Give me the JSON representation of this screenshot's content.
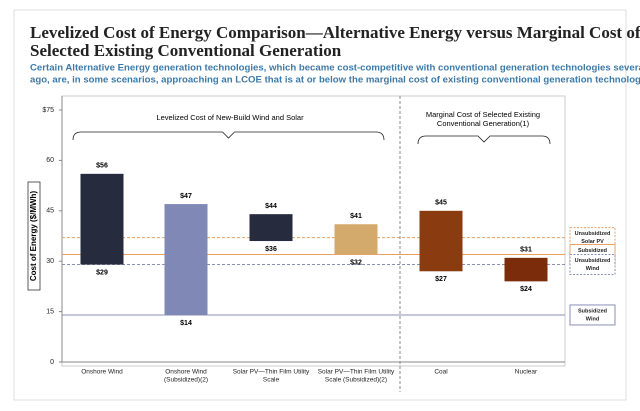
{
  "chart_data": {
    "type": "floating-bar",
    "title_lines": [
      "Levelized Cost of Energy Comparison—Alternative Energy versus Marginal Cost of",
      "Selected Existing Conventional Generation"
    ],
    "subtitle_lines": [
      "Certain Alternative Energy generation technologies, which became cost-competitive with conventional generation technologies several years",
      "ago, are, in some scenarios, approaching an LCOE that is at or below the marginal cost of existing conventional generation technologies"
    ],
    "y_label": "Cost of Energy ($/MWh)",
    "categories": [
      [
        "Onshore Wind"
      ],
      [
        "Onshore Wind",
        "(Subsidized)(2)"
      ],
      [
        "Solar PV—Thin Film Utility",
        "Scale"
      ],
      [
        "Solar PV—Thin Film Utility",
        "Scale (Subsidized)(2)"
      ],
      [
        "Coal"
      ],
      [
        "Nuclear"
      ]
    ],
    "colors": [
      "#262b3e",
      "#8088b6",
      "#262b3e",
      "#d3aa6c",
      "#8a3b10",
      "#7b2c0b"
    ],
    "high": {
      "values": [
        56,
        47,
        44,
        41,
        45,
        31
      ],
      "value_labels": [
        "$56",
        "$47",
        "$44",
        "$41",
        "$45",
        "$31"
      ]
    },
    "low": {
      "values": [
        29,
        14,
        36,
        32,
        27,
        24
      ],
      "value_labels": [
        "$29",
        "$14",
        "$36",
        "$32",
        "$27",
        "$24"
      ]
    },
    "groups": [
      "Levelized Cost of New-Build Wind and Solar",
      [
        "Marginal Cost of Selected Existing",
        "Conventional Generation(1)"
      ]
    ],
    "reference_lines": [
      {
        "label": [
          "Unsubsidized",
          "Solar PV"
        ],
        "value": 37,
        "color": "#e8a060",
        "dashed": true
      },
      {
        "label": [
          "Subsidized",
          "Solar PV"
        ],
        "value": 32,
        "color": "#e8a060",
        "dashed": false
      },
      {
        "label": [
          "Unsubsidized",
          "Wind"
        ],
        "value": 29,
        "color": "#8a8fb8",
        "dashed": true
      },
      {
        "label": [
          "Subsidized",
          "Wind"
        ],
        "value": 14,
        "color": "#8a8fb8",
        "dashed": false
      }
    ],
    "ylim": [
      0,
      75
    ],
    "yticks": [
      0,
      15,
      30,
      45,
      60,
      {
        "value": 75,
        "label": "$75"
      }
    ]
  }
}
